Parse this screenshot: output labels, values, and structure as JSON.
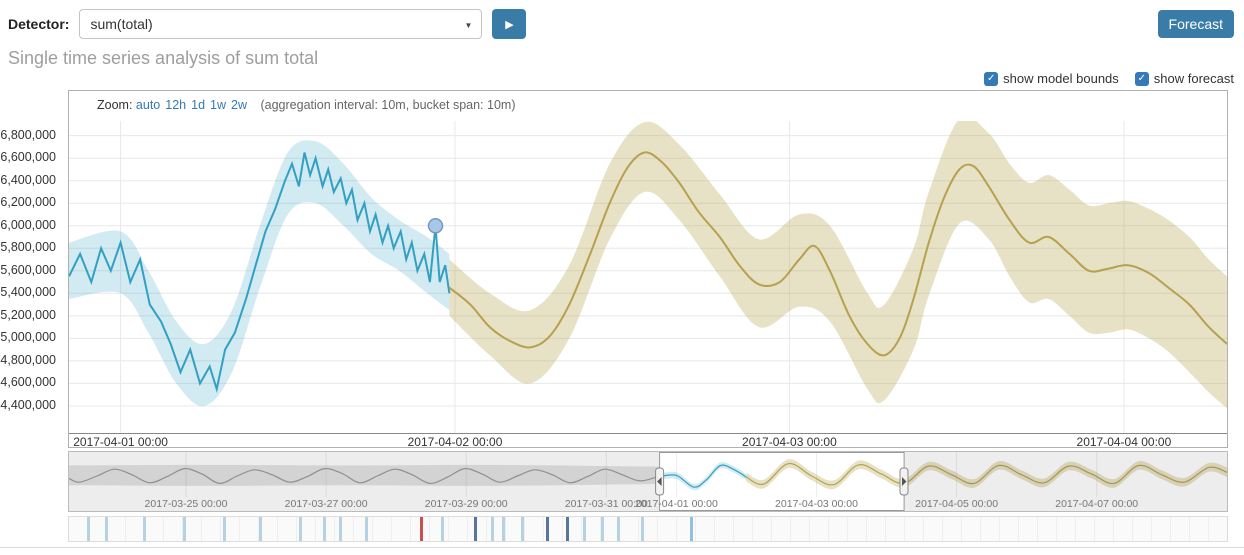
{
  "icons": {
    "caret_down": "▼",
    "play": "▶",
    "check": "✓"
  },
  "colors": {
    "accent_blue": "#3a7ca8",
    "link_blue": "#337ab7",
    "title_gray": "#9e9e9e",
    "actual_line": "#32a0c2",
    "actual_band": "rgba(50,160,194,0.22)",
    "forecast_line": "#b5a14e",
    "forecast_band": "rgba(181,161,78,0.32)",
    "marker_fill": "#a7c8e8",
    "marker_stroke": "#7897bd",
    "grid": "#e8e8e8",
    "context_gray_line": "#9a9a9a",
    "context_gray_band": "rgba(130,130,130,0.22)",
    "swimlane_tick_light": "#b6d0e4",
    "swimlane_tick_dark": "#54779b",
    "swimlane_tick_red": "#c94f4a",
    "swimlane_tick_selected": "#8fc1e0"
  },
  "toolbar": {
    "detector_label": "Detector:",
    "detector_value": "sum(total)",
    "forecast_button": "Forecast"
  },
  "page": {
    "title": "Single time series analysis of sum total"
  },
  "controls": {
    "checkboxes": [
      {
        "label": "show model bounds",
        "checked": true
      },
      {
        "label": "show forecast",
        "checked": true
      }
    ]
  },
  "zoom_bar": {
    "label": "Zoom:",
    "options": [
      "auto",
      "12h",
      "1d",
      "1w",
      "2w"
    ],
    "info": "(aggregation interval: 10m, bucket span: 10m)"
  },
  "chart_data": {
    "type": "line",
    "values_unit": "millions",
    "main": {
      "x_unit": "hours since 2017-04-01 00:00",
      "x_domain": [
        -3.7,
        79.4
      ],
      "y_domain": [
        4.16,
        6.93
      ],
      "y_ticks": [
        {
          "label": "6,800,000",
          "v": 6.8
        },
        {
          "label": "6,600,000",
          "v": 6.6
        },
        {
          "label": "6,400,000",
          "v": 6.4
        },
        {
          "label": "6,200,000",
          "v": 6.2
        },
        {
          "label": "6,000,000",
          "v": 6.0
        },
        {
          "label": "5,800,000",
          "v": 5.8
        },
        {
          "label": "5,600,000",
          "v": 5.6
        },
        {
          "label": "5,400,000",
          "v": 5.4
        },
        {
          "label": "5,200,000",
          "v": 5.2
        },
        {
          "label": "5,000,000",
          "v": 5.0
        },
        {
          "label": "4,800,000",
          "v": 4.8
        },
        {
          "label": "4,600,000",
          "v": 4.6
        },
        {
          "label": "4,400,000",
          "v": 4.4
        }
      ],
      "x_ticks": [
        {
          "t": 0,
          "label": "2017-04-01 00:00"
        },
        {
          "t": 24,
          "label": "2017-04-02 00:00"
        },
        {
          "t": 48,
          "label": "2017-04-03 00:00"
        },
        {
          "t": 72,
          "label": "2017-04-04 00:00"
        }
      ],
      "actual_bounds": [
        [
          -3.7,
          5.35,
          5.85
        ],
        [
          0,
          5.4,
          5.95
        ],
        [
          2,
          5.05,
          5.6
        ],
        [
          4,
          4.6,
          5.15
        ],
        [
          6,
          4.4,
          4.95
        ],
        [
          8,
          4.7,
          5.25
        ],
        [
          10,
          5.45,
          6.0
        ],
        [
          12,
          6.1,
          6.65
        ],
        [
          14,
          6.2,
          6.75
        ],
        [
          16,
          6.0,
          6.55
        ],
        [
          18,
          5.75,
          6.25
        ],
        [
          20,
          5.6,
          6.05
        ],
        [
          22,
          5.4,
          5.9
        ],
        [
          23.6,
          5.25,
          5.75
        ]
      ],
      "actual": [
        [
          -3.7,
          5.55
        ],
        [
          -2.9,
          5.75
        ],
        [
          -2.1,
          5.5
        ],
        [
          -1.4,
          5.8
        ],
        [
          -0.7,
          5.6
        ],
        [
          0,
          5.85
        ],
        [
          0.7,
          5.5
        ],
        [
          1.4,
          5.7
        ],
        [
          2.1,
          5.3
        ],
        [
          2.9,
          5.15
        ],
        [
          3.6,
          4.95
        ],
        [
          4.3,
          4.7
        ],
        [
          5.0,
          4.9
        ],
        [
          5.7,
          4.6
        ],
        [
          6.4,
          4.75
        ],
        [
          6.9,
          4.55
        ],
        [
          7.5,
          4.9
        ],
        [
          8.2,
          5.05
        ],
        [
          9.0,
          5.35
        ],
        [
          9.7,
          5.65
        ],
        [
          10.4,
          5.95
        ],
        [
          11.1,
          6.15
        ],
        [
          11.8,
          6.4
        ],
        [
          12.3,
          6.55
        ],
        [
          12.8,
          6.35
        ],
        [
          13.2,
          6.65
        ],
        [
          13.6,
          6.45
        ],
        [
          14.0,
          6.6
        ],
        [
          14.5,
          6.35
        ],
        [
          14.9,
          6.5
        ],
        [
          15.3,
          6.3
        ],
        [
          15.8,
          6.42
        ],
        [
          16.2,
          6.2
        ],
        [
          16.6,
          6.32
        ],
        [
          17.0,
          6.05
        ],
        [
          17.5,
          6.2
        ],
        [
          17.9,
          5.95
        ],
        [
          18.3,
          6.1
        ],
        [
          18.8,
          5.85
        ],
        [
          19.2,
          6.0
        ],
        [
          19.6,
          5.8
        ],
        [
          20.1,
          5.95
        ],
        [
          20.5,
          5.7
        ],
        [
          20.9,
          5.85
        ],
        [
          21.3,
          5.6
        ],
        [
          21.8,
          5.75
        ],
        [
          22.2,
          5.5
        ],
        [
          22.6,
          6.0
        ],
        [
          22.9,
          5.5
        ],
        [
          23.3,
          5.65
        ],
        [
          23.6,
          5.4
        ]
      ],
      "forecast_bounds": [
        [
          23.6,
          5.2,
          5.7
        ],
        [
          26.5,
          4.85,
          5.4
        ],
        [
          29.4,
          4.6,
          5.25
        ],
        [
          32.2,
          5.0,
          5.65
        ],
        [
          35.1,
          5.88,
          6.55
        ],
        [
          37.6,
          6.3,
          6.92
        ],
        [
          40.1,
          6.05,
          6.72
        ],
        [
          43.0,
          5.55,
          6.28
        ],
        [
          45.8,
          5.1,
          5.88
        ],
        [
          48.7,
          5.28,
          6.1
        ],
        [
          50.9,
          5.15,
          6.0
        ],
        [
          53.6,
          4.55,
          5.4
        ],
        [
          54.8,
          4.45,
          5.3
        ],
        [
          56.9,
          4.9,
          5.8
        ],
        [
          58.0,
          5.38,
          6.3
        ],
        [
          60.2,
          6.02,
          6.95
        ],
        [
          62.3,
          5.88,
          6.82
        ],
        [
          63.8,
          5.55,
          6.55
        ],
        [
          65.2,
          5.32,
          6.38
        ],
        [
          66.6,
          5.35,
          6.45
        ],
        [
          68.1,
          5.2,
          6.32
        ],
        [
          69.5,
          5.05,
          6.18
        ],
        [
          70.9,
          5.05,
          6.2
        ],
        [
          72.3,
          5.08,
          6.22
        ],
        [
          73.8,
          5.0,
          6.15
        ],
        [
          75.2,
          4.88,
          6.05
        ],
        [
          76.7,
          4.7,
          5.9
        ],
        [
          78.1,
          4.52,
          5.7
        ],
        [
          79.4,
          4.38,
          5.55
        ]
      ],
      "forecast": [
        [
          23.6,
          5.45
        ],
        [
          25.1,
          5.3
        ],
        [
          26.5,
          5.1
        ],
        [
          27.9,
          4.98
        ],
        [
          29.4,
          4.92
        ],
        [
          30.8,
          5.02
        ],
        [
          32.2,
          5.3
        ],
        [
          33.7,
          5.75
        ],
        [
          35.1,
          6.2
        ],
        [
          36.4,
          6.52
        ],
        [
          37.6,
          6.65
        ],
        [
          38.8,
          6.57
        ],
        [
          40.1,
          6.38
        ],
        [
          41.5,
          6.12
        ],
        [
          43.0,
          5.9
        ],
        [
          44.4,
          5.65
        ],
        [
          45.8,
          5.48
        ],
        [
          47.3,
          5.5
        ],
        [
          48.7,
          5.7
        ],
        [
          49.8,
          5.82
        ],
        [
          50.9,
          5.6
        ],
        [
          52.3,
          5.2
        ],
        [
          53.6,
          4.95
        ],
        [
          54.8,
          4.85
        ],
        [
          55.9,
          5.0
        ],
        [
          56.9,
          5.35
        ],
        [
          58.0,
          5.85
        ],
        [
          59.1,
          6.25
        ],
        [
          60.2,
          6.5
        ],
        [
          61.2,
          6.53
        ],
        [
          62.3,
          6.35
        ],
        [
          63.8,
          6.05
        ],
        [
          65.2,
          5.85
        ],
        [
          66.6,
          5.9
        ],
        [
          68.1,
          5.75
        ],
        [
          69.5,
          5.6
        ],
        [
          70.9,
          5.62
        ],
        [
          72.3,
          5.65
        ],
        [
          73.8,
          5.58
        ],
        [
          75.2,
          5.45
        ],
        [
          76.7,
          5.3
        ],
        [
          78.1,
          5.1
        ],
        [
          79.4,
          4.95
        ]
      ],
      "marker": {
        "t": 22.6,
        "v": 6.0
      }
    },
    "context": {
      "x_unit": "days since 2017-03-23 08:00",
      "x_domain": [
        0,
        16.53
      ],
      "y_domain": [
        3.9,
        7.3
      ],
      "selection": [
        8.43,
        11.92
      ],
      "x_ticks": [
        {
          "d": 1.67,
          "label": "2017-03-25 00:00"
        },
        {
          "d": 3.67,
          "label": "2017-03-27 00:00"
        },
        {
          "d": 5.67,
          "label": "2017-03-29 00:00"
        },
        {
          "d": 7.67,
          "label": "2017-03-31 00:00"
        },
        {
          "d": 8.67,
          "label": "2017-04-01 00:00"
        },
        {
          "d": 10.67,
          "label": "2017-04-03 00:00"
        },
        {
          "d": 12.67,
          "label": "2017-04-05 00:00"
        },
        {
          "d": 14.67,
          "label": "2017-04-07 00:00"
        }
      ],
      "gray_band": [
        [
          0,
          4.85,
          6.45
        ],
        [
          2,
          4.8,
          6.5
        ],
        [
          4,
          4.85,
          6.45
        ],
        [
          6,
          4.8,
          6.5
        ],
        [
          8.43,
          4.95,
          6.35
        ]
      ],
      "gray": [
        [
          0,
          5.4
        ],
        [
          0.15,
          5.1
        ],
        [
          0.4,
          5.6
        ],
        [
          0.65,
          6.15
        ],
        [
          0.9,
          5.7
        ],
        [
          1.15,
          5.05
        ],
        [
          1.4,
          5.55
        ],
        [
          1.65,
          6.2
        ],
        [
          1.9,
          5.75
        ],
        [
          2.15,
          5.0
        ],
        [
          2.4,
          5.6
        ],
        [
          2.65,
          6.1
        ],
        [
          2.9,
          5.7
        ],
        [
          3.15,
          5.1
        ],
        [
          3.4,
          5.55
        ],
        [
          3.65,
          6.2
        ],
        [
          3.9,
          5.8
        ],
        [
          4.15,
          5.05
        ],
        [
          4.4,
          5.6
        ],
        [
          4.65,
          6.15
        ],
        [
          4.9,
          5.7
        ],
        [
          5.15,
          5.0
        ],
        [
          5.4,
          5.5
        ],
        [
          5.65,
          6.2
        ],
        [
          5.9,
          5.75
        ],
        [
          6.15,
          5.1
        ],
        [
          6.4,
          5.6
        ],
        [
          6.65,
          6.1
        ],
        [
          6.9,
          5.7
        ],
        [
          7.15,
          5.05
        ],
        [
          7.4,
          5.55
        ],
        [
          7.65,
          6.15
        ],
        [
          7.9,
          5.7
        ],
        [
          8.15,
          5.2
        ],
        [
          8.43,
          5.6
        ]
      ],
      "blue_band": [
        [
          8.43,
          5.3,
          5.8
        ],
        [
          8.67,
          5.35,
          5.9
        ],
        [
          8.92,
          4.45,
          4.95
        ],
        [
          9.1,
          5.05,
          5.55
        ],
        [
          9.3,
          6.2,
          6.7
        ],
        [
          9.5,
          5.85,
          6.35
        ],
        [
          9.67,
          5.25,
          5.75
        ]
      ],
      "blue": [
        [
          8.43,
          5.55
        ],
        [
          8.67,
          5.65
        ],
        [
          8.92,
          4.7
        ],
        [
          9.1,
          5.3
        ],
        [
          9.3,
          6.45
        ],
        [
          9.5,
          6.1
        ],
        [
          9.67,
          5.5
        ]
      ],
      "gold_band": [
        [
          9.67,
          5.15,
          5.85
        ],
        [
          9.92,
          4.6,
          5.3
        ],
        [
          10.27,
          6.25,
          6.95
        ],
        [
          10.6,
          5.25,
          5.95
        ],
        [
          10.92,
          4.55,
          5.25
        ],
        [
          11.27,
          6.15,
          6.85
        ],
        [
          11.6,
          5.4,
          6.1
        ],
        [
          11.92,
          4.65,
          5.35
        ],
        [
          12.27,
          6.05,
          6.75
        ],
        [
          12.6,
          5.35,
          6.05
        ],
        [
          12.92,
          4.65,
          5.35
        ],
        [
          13.27,
          6.1,
          6.8
        ],
        [
          13.6,
          5.35,
          6.05
        ],
        [
          13.92,
          4.7,
          5.4
        ],
        [
          14.27,
          6.05,
          6.75
        ],
        [
          14.6,
          5.4,
          6.1
        ],
        [
          14.92,
          4.65,
          5.35
        ],
        [
          15.27,
          6.1,
          6.8
        ],
        [
          15.6,
          5.35,
          6.05
        ],
        [
          15.92,
          4.75,
          5.45
        ],
        [
          16.27,
          5.95,
          6.65
        ],
        [
          16.53,
          5.5,
          6.3
        ]
      ],
      "gold": [
        [
          9.67,
          5.5
        ],
        [
          9.92,
          4.95
        ],
        [
          10.27,
          6.6
        ],
        [
          10.6,
          5.6
        ],
        [
          10.92,
          4.9
        ],
        [
          11.27,
          6.5
        ],
        [
          11.6,
          5.75
        ],
        [
          11.92,
          5.0
        ],
        [
          12.27,
          6.4
        ],
        [
          12.6,
          5.7
        ],
        [
          12.92,
          5.0
        ],
        [
          13.27,
          6.45
        ],
        [
          13.6,
          5.7
        ],
        [
          13.92,
          5.05
        ],
        [
          14.27,
          6.4
        ],
        [
          14.6,
          5.75
        ],
        [
          14.92,
          5.0
        ],
        [
          15.27,
          6.45
        ],
        [
          15.6,
          5.7
        ],
        [
          15.92,
          5.1
        ],
        [
          16.27,
          6.3
        ],
        [
          16.53,
          5.9
        ]
      ]
    },
    "swimlane": {
      "ticks": [
        {
          "d": 0.26,
          "color": "light"
        },
        {
          "d": 0.51,
          "color": "light"
        },
        {
          "d": 1.05,
          "color": "light"
        },
        {
          "d": 1.62,
          "color": "light"
        },
        {
          "d": 2.2,
          "color": "light"
        },
        {
          "d": 2.71,
          "color": "light"
        },
        {
          "d": 3.28,
          "color": "light"
        },
        {
          "d": 3.62,
          "color": "light"
        },
        {
          "d": 3.85,
          "color": "light"
        },
        {
          "d": 4.22,
          "color": "light"
        },
        {
          "d": 5.01,
          "color": "red"
        },
        {
          "d": 5.31,
          "color": "light"
        },
        {
          "d": 5.78,
          "color": "dark"
        },
        {
          "d": 6.02,
          "color": "light"
        },
        {
          "d": 6.18,
          "color": "light"
        },
        {
          "d": 6.45,
          "color": "light"
        },
        {
          "d": 6.81,
          "color": "dark"
        },
        {
          "d": 7.09,
          "color": "dark"
        },
        {
          "d": 7.34,
          "color": "light"
        },
        {
          "d": 7.59,
          "color": "light"
        },
        {
          "d": 7.82,
          "color": "light"
        },
        {
          "d": 8.16,
          "color": "light"
        },
        {
          "d": 8.86,
          "color": "selected"
        }
      ]
    }
  }
}
